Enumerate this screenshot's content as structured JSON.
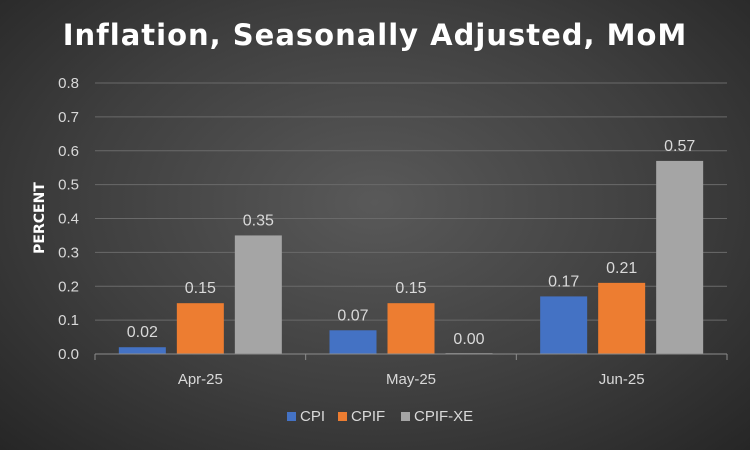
{
  "chart_data": {
    "type": "bar",
    "title": "Inflation, Seasonally Adjusted, MoM",
    "xlabel": "",
    "ylabel": "PERCENT",
    "ylim": [
      0,
      0.8
    ],
    "yticks": [
      "0.0",
      "0.1",
      "0.2",
      "0.3",
      "0.4",
      "0.5",
      "0.6",
      "0.7",
      "0.8"
    ],
    "categories": [
      "Apr-25",
      "May-25",
      "Jun-25"
    ],
    "series": [
      {
        "name": "CPI",
        "color": "#4472c4",
        "values": [
          0.02,
          0.07,
          0.17
        ],
        "labels": [
          "0.02",
          "0.07",
          "0.17"
        ]
      },
      {
        "name": "CPIF",
        "color": "#ed7d31",
        "values": [
          0.15,
          0.15,
          0.21
        ],
        "labels": [
          "0.15",
          "0.15",
          "0.21"
        ]
      },
      {
        "name": "CPIF-XE",
        "color": "#a5a5a5",
        "values": [
          0.35,
          0.0,
          0.57
        ],
        "labels": [
          "0.35",
          "0.00",
          "0.57"
        ]
      }
    ],
    "legend": "bottom",
    "grid": true
  }
}
